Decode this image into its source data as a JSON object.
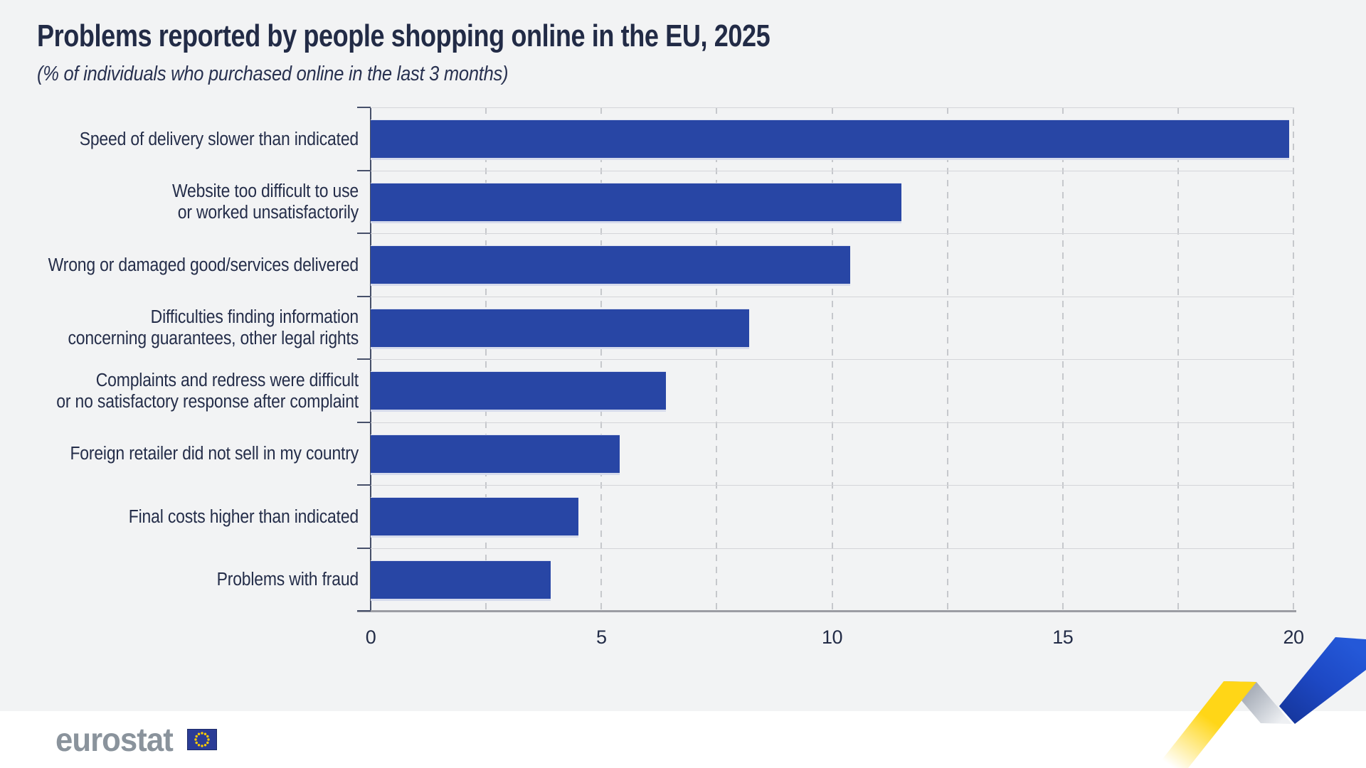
{
  "header": {
    "title": "Problems reported by people shopping online in the EU, 2025",
    "subtitle": "(% of individuals who purchased online in the last 3 months)"
  },
  "chart_data": {
    "type": "bar",
    "orientation": "horizontal",
    "title": "Problems reported by people shopping online in the EU, 2025",
    "subtitle": "(% of individuals who purchased online in the last 3 months)",
    "categories": [
      "Speed of delivery slower than indicated",
      "Website too difficult to use\nor worked unsatisfactorily",
      "Wrong or damaged good/services delivered",
      "Difficulties finding information\nconcerning guarantees, other legal rights",
      "Complaints and redress were difficult\nor no satisfactory response after complaint",
      "Foreign retailer did not sell in my country",
      "Final costs higher than indicated",
      "Problems with fraud"
    ],
    "values": [
      19.9,
      11.5,
      10.4,
      8.2,
      6.4,
      5.4,
      4.5,
      3.9
    ],
    "xlabel": "",
    "ylabel": "",
    "xlim": [
      0,
      20
    ],
    "x_ticks": [
      0,
      5,
      10,
      15,
      20
    ],
    "gridline_step": 2.5,
    "grid": "vertical-dashed",
    "legend": "none",
    "bar_color": "#2846a5"
  },
  "footer": {
    "logo_text": "eurostat"
  },
  "colors": {
    "background": "#f2f3f4",
    "footer_background": "#ffffff",
    "bar_blue": "#2846a5",
    "text_navy": "#232c47",
    "gridline_gray": "#c6c8cc",
    "separator_gray": "#d4d5d9",
    "axis_gray": "#9b9ca3",
    "logo_gray": "#8a939c",
    "flag_blue": "#2b3c96",
    "star_yellow": "#ffcc00",
    "ribbon_yellow": "#ffd617",
    "ribbon_silver": "#9aa0ac",
    "ribbon_blue": "#1d48c4"
  }
}
